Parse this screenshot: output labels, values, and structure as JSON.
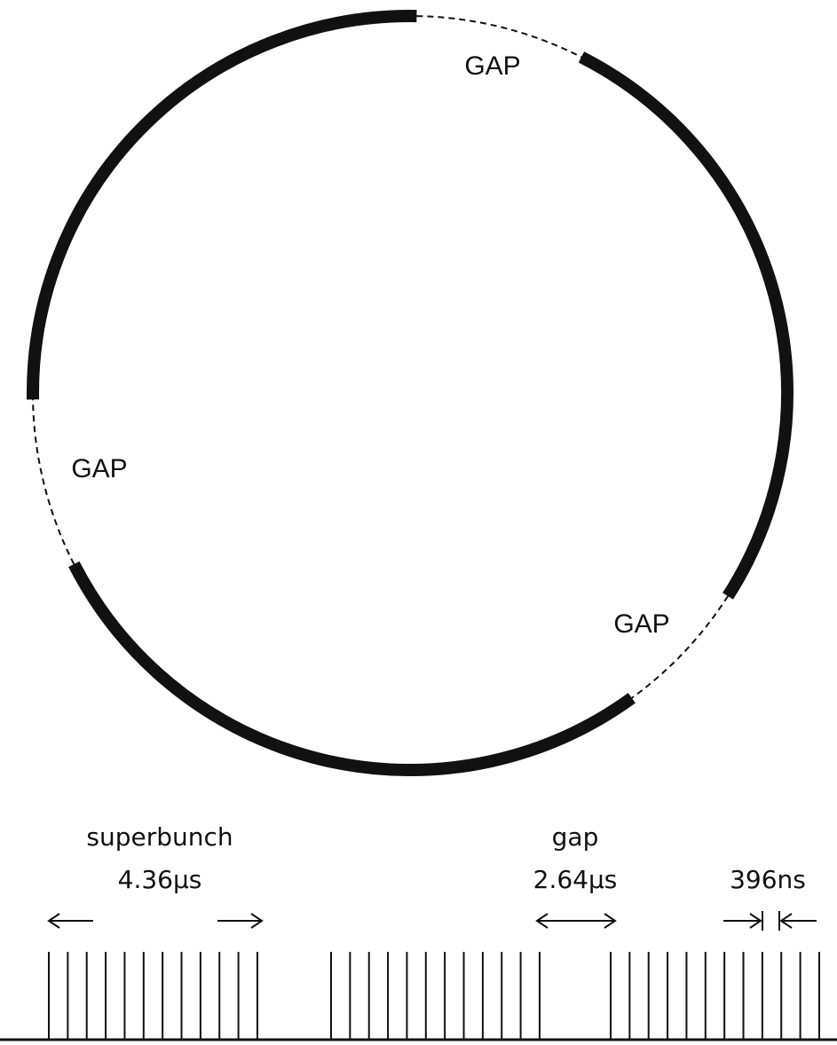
{
  "labels": {
    "gap_top": "GAP",
    "gap_left": "GAP",
    "gap_right": "GAP"
  },
  "timing": {
    "superbunch": "superbunch",
    "superbunch_length": "4.36μs",
    "gap": "gap",
    "gap_length": "2.64μs",
    "spacing": "396ns"
  }
}
